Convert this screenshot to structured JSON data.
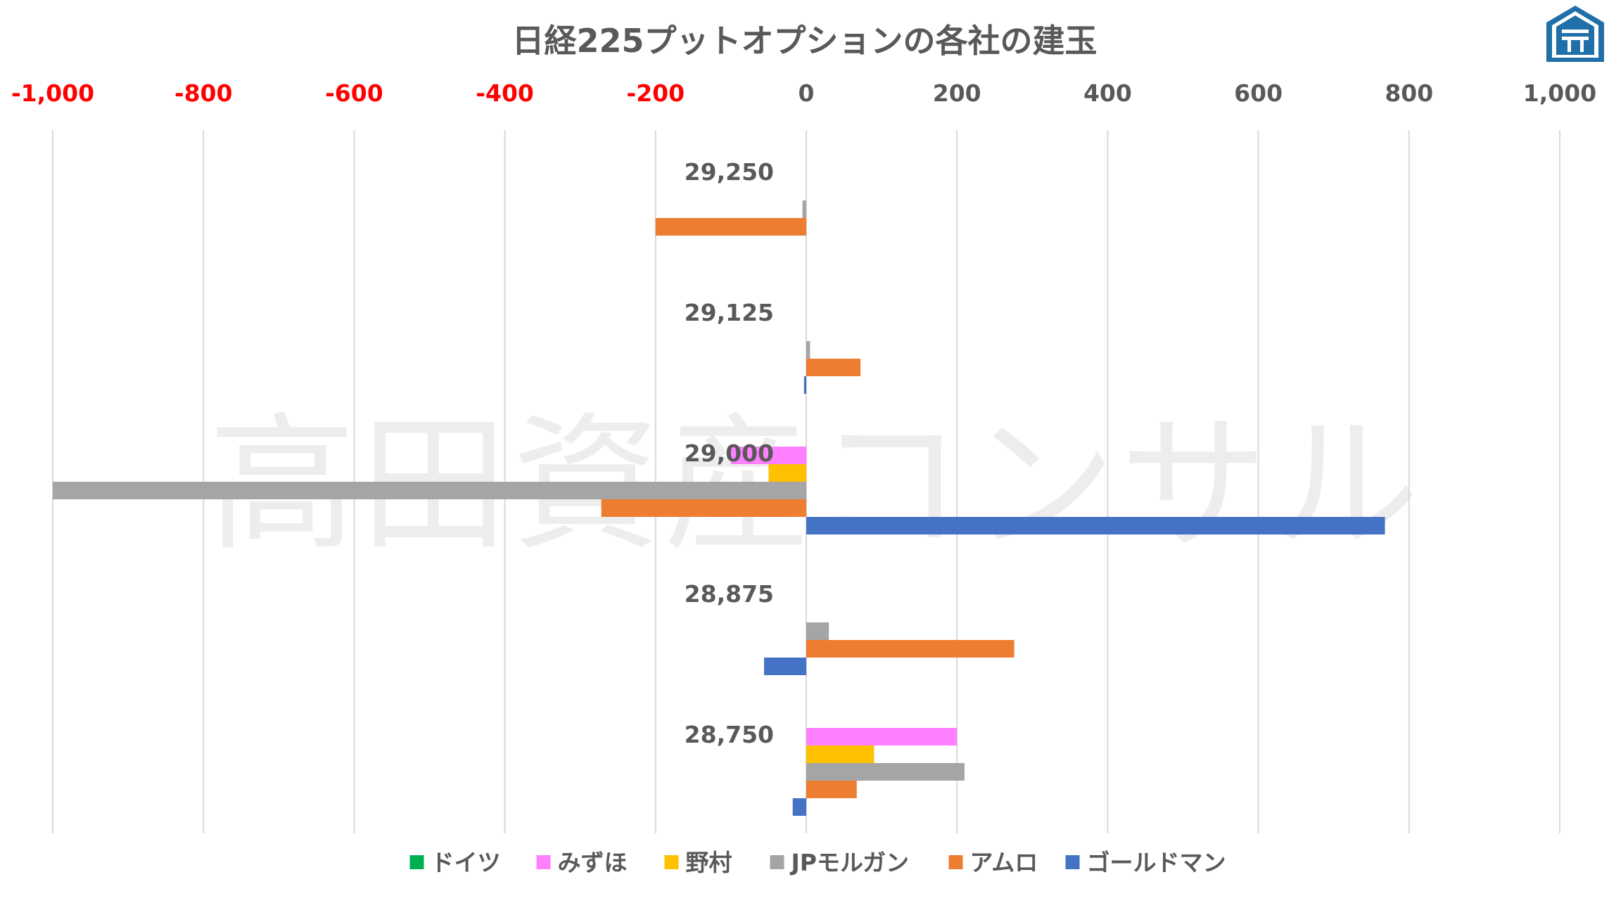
{
  "chart_data": {
    "type": "bar",
    "orientation": "horizontal",
    "title": "日経225プットオプションの各社の建玉",
    "watermark": "高田資産コンサル",
    "xlim": [
      -1000,
      1000
    ],
    "xticks": [
      {
        "value": -1000,
        "label": "-1,000"
      },
      {
        "value": -800,
        "label": "-800"
      },
      {
        "value": -600,
        "label": "-600"
      },
      {
        "value": -400,
        "label": "-400"
      },
      {
        "value": -200,
        "label": "-200"
      },
      {
        "value": 0,
        "label": "0"
      },
      {
        "value": 200,
        "label": "200"
      },
      {
        "value": 400,
        "label": "400"
      },
      {
        "value": 600,
        "label": "600"
      },
      {
        "value": 800,
        "label": "800"
      },
      {
        "value": 1000,
        "label": "1,000"
      }
    ],
    "negative_tick_color": "#ff0000",
    "positive_tick_color": "#595959",
    "grid": true,
    "legend_position": "bottom",
    "categories": [
      "29,250",
      "29,125",
      "29,000",
      "28,875",
      "28,750"
    ],
    "series": [
      {
        "name": "ドイツ",
        "color": "#00b050",
        "values": [
          0,
          0,
          0,
          0,
          0
        ]
      },
      {
        "name": "みずほ",
        "color": "#ff80ff",
        "values": [
          0,
          0,
          -100,
          0,
          200
        ]
      },
      {
        "name": "野村",
        "color": "#ffc000",
        "values": [
          0,
          0,
          -50,
          0,
          90
        ]
      },
      {
        "name": "JPモルガン",
        "color": "#a5a5a5",
        "values": [
          -5,
          5,
          -1000,
          30,
          210
        ]
      },
      {
        "name": "アムロ",
        "color": "#ed7d31",
        "values": [
          -200,
          72,
          -272,
          276,
          67
        ]
      },
      {
        "name": "ゴールドマン",
        "color": "#4472c4",
        "values": [
          0,
          -3,
          768,
          -56,
          -18
        ]
      }
    ]
  }
}
